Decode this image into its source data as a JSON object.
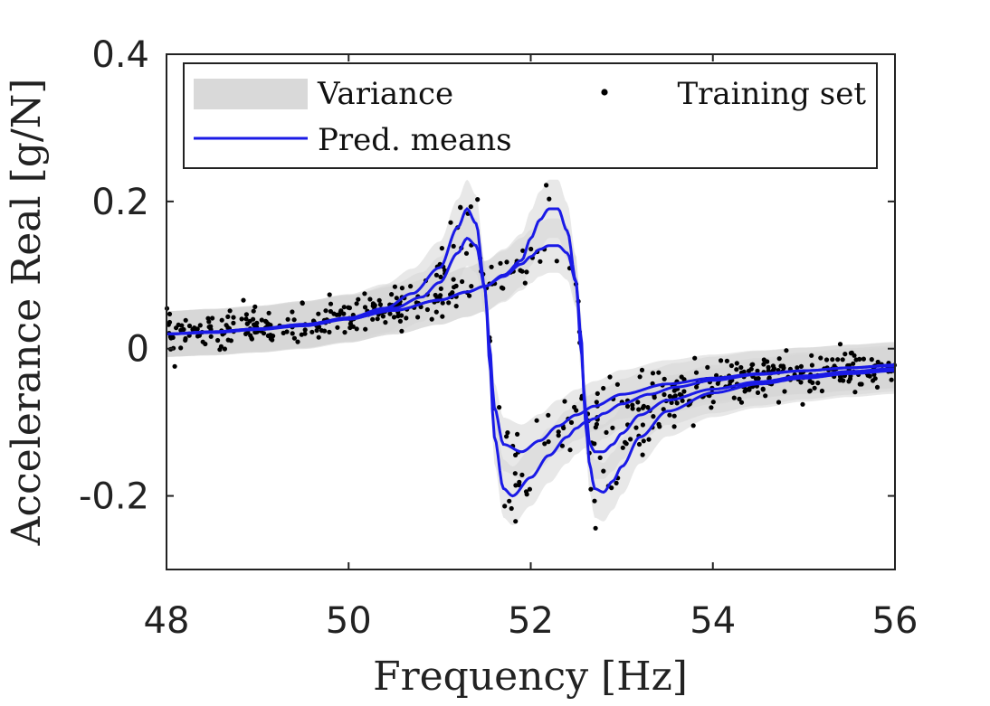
{
  "chart_data": {
    "type": "line",
    "xlabel": "Frequency [Hz]",
    "ylabel": "Accelerance Real [g/N]",
    "xlim": [
      48,
      56
    ],
    "ylim": [
      -0.3,
      0.4
    ],
    "xticks": [
      48,
      50,
      52,
      54,
      56
    ],
    "xtick_labels": [
      "48",
      "50",
      "52",
      "54",
      "56"
    ],
    "yticks": [
      -0.2,
      0,
      0.2,
      0.4
    ],
    "ytick_labels": [
      "-0.2",
      "0",
      "0.2",
      "0.4"
    ],
    "grid": false,
    "legend": {
      "placement": "top",
      "entries": [
        {
          "label": "Variance",
          "kind": "band",
          "color": "#d6d6d6"
        },
        {
          "label": "Training set",
          "kind": "marker",
          "color": "#000000"
        },
        {
          "label": "Pred. means",
          "kind": "line",
          "color": "#1a1ae6"
        }
      ]
    },
    "series": [
      {
        "name": "Pred. means (curve A)",
        "color": "#1a1ae6",
        "x": [
          48.0,
          48.5,
          49.0,
          49.5,
          50.0,
          50.4,
          50.7,
          51.0,
          51.2,
          51.3,
          51.4,
          51.5,
          51.55,
          51.6,
          51.7,
          51.8,
          52.0,
          52.2,
          52.4,
          52.5,
          52.6,
          52.7,
          52.8,
          53.0,
          53.3,
          53.6,
          54.0,
          54.5,
          55.0,
          55.5,
          56.0
        ],
        "y": [
          0.02,
          0.022,
          0.026,
          0.032,
          0.042,
          0.055,
          0.075,
          0.11,
          0.165,
          0.19,
          0.17,
          0.08,
          -0.02,
          -0.12,
          -0.19,
          -0.2,
          -0.175,
          -0.145,
          -0.12,
          -0.108,
          -0.1,
          -0.095,
          -0.088,
          -0.075,
          -0.062,
          -0.052,
          -0.043,
          -0.035,
          -0.03,
          -0.026,
          -0.022
        ]
      },
      {
        "name": "Pred. means (curve B)",
        "color": "#1a1ae6",
        "x": [
          48.0,
          48.5,
          49.0,
          49.5,
          50.0,
          50.5,
          51.0,
          51.3,
          51.5,
          51.7,
          51.9,
          52.0,
          52.1,
          52.2,
          52.3,
          52.4,
          52.5,
          52.55,
          52.6,
          52.65,
          52.7,
          52.8,
          52.9,
          53.0,
          53.2,
          53.5,
          54.0,
          54.5,
          55.0,
          55.5,
          56.0
        ],
        "y": [
          0.02,
          0.023,
          0.027,
          0.033,
          0.041,
          0.052,
          0.066,
          0.077,
          0.085,
          0.1,
          0.12,
          0.15,
          0.175,
          0.19,
          0.19,
          0.16,
          0.09,
          0.0,
          -0.08,
          -0.13,
          -0.14,
          -0.14,
          -0.13,
          -0.115,
          -0.09,
          -0.07,
          -0.055,
          -0.045,
          -0.037,
          -0.031,
          -0.027
        ]
      },
      {
        "name": "Pred. means (curve C)",
        "color": "#1a1ae6",
        "x": [
          48.0,
          48.5,
          49.0,
          49.5,
          50.0,
          50.5,
          50.8,
          51.0,
          51.2,
          51.3,
          51.4,
          51.5,
          51.55,
          51.6,
          51.7,
          51.9,
          52.1,
          52.3,
          52.5,
          52.7,
          53.0,
          53.5,
          54.0,
          54.5,
          55.0,
          55.5,
          56.0
        ],
        "y": [
          0.02,
          0.022,
          0.026,
          0.031,
          0.04,
          0.055,
          0.07,
          0.09,
          0.13,
          0.15,
          0.14,
          0.08,
          0.0,
          -0.08,
          -0.13,
          -0.14,
          -0.125,
          -0.105,
          -0.09,
          -0.078,
          -0.062,
          -0.048,
          -0.04,
          -0.034,
          -0.03,
          -0.026,
          -0.023
        ]
      },
      {
        "name": "Pred. means (curve D)",
        "color": "#1a1ae6",
        "x": [
          48.0,
          48.5,
          49.0,
          49.5,
          50.0,
          50.5,
          51.0,
          51.3,
          51.5,
          51.7,
          51.9,
          52.0,
          52.1,
          52.2,
          52.3,
          52.4,
          52.5,
          52.55,
          52.6,
          52.65,
          52.7,
          52.8,
          52.9,
          53.0,
          53.2,
          53.5,
          54.0,
          54.5,
          55.0,
          55.5,
          56.0
        ],
        "y": [
          0.02,
          0.023,
          0.027,
          0.033,
          0.041,
          0.052,
          0.066,
          0.077,
          0.085,
          0.098,
          0.115,
          0.125,
          0.135,
          0.14,
          0.14,
          0.13,
          0.09,
          0.02,
          -0.1,
          -0.16,
          -0.19,
          -0.195,
          -0.18,
          -0.16,
          -0.12,
          -0.085,
          -0.06,
          -0.048,
          -0.04,
          -0.034,
          -0.03
        ]
      }
    ],
    "variance_band": {
      "name": "Variance",
      "color": "#d6d6d6",
      "half_width": 0.03,
      "peak_half_width": 0.04
    },
    "training_set": {
      "name": "Training set",
      "color": "#000000",
      "approx_points": 600,
      "noise_std": 0.012
    }
  }
}
